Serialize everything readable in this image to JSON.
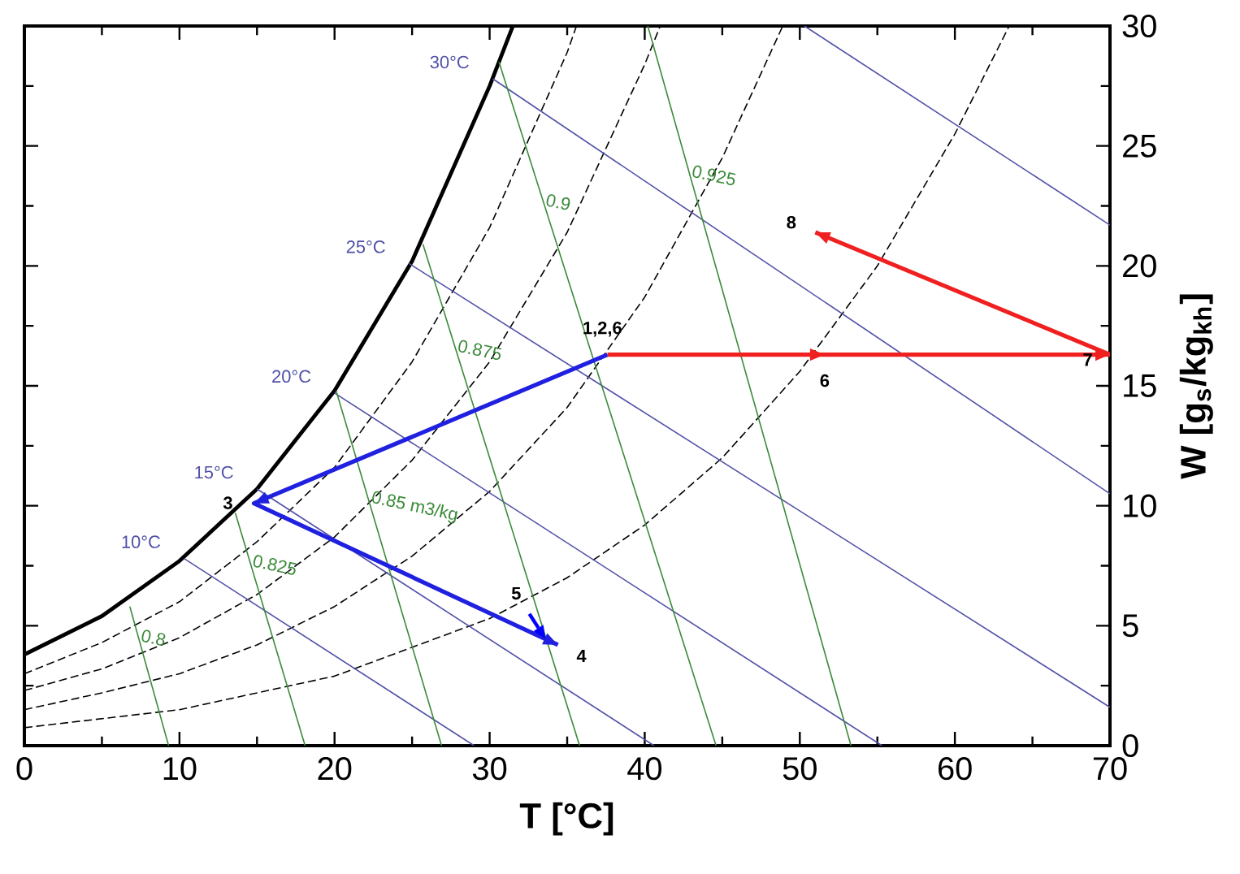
{
  "chart_data": {
    "type": "line",
    "xlabel": "T [°C]",
    "ylabel": "W [g$_{s}$/kg$_{kh}$]",
    "xlim": [
      0,
      70
    ],
    "ylim": [
      0,
      30
    ],
    "xticks": [
      0,
      10,
      20,
      30,
      40,
      50,
      60,
      70
    ],
    "yticks": [
      0,
      5,
      10,
      15,
      20,
      25,
      30
    ],
    "series": [
      {
        "color": "#000000",
        "x": [
          0,
          5,
          10,
          15,
          20,
          25,
          30,
          31.5
        ],
        "values": [
          3.8,
          5.4,
          7.7,
          10.7,
          14.8,
          20.2,
          27.5,
          30
        ]
      },
      {
        "color": "#000000",
        "line_style": "dashed",
        "x": [
          0,
          5,
          10,
          15,
          20,
          25,
          30,
          35,
          35.6
        ],
        "values": [
          3.0,
          4.3,
          6.0,
          8.5,
          11.6,
          16.0,
          21.6,
          28.9,
          30
        ]
      },
      {
        "color": "#000000",
        "line_style": "dashed",
        "x": [
          0,
          5,
          10,
          15,
          20,
          25,
          30,
          35,
          40,
          41
        ],
        "values": [
          2.3,
          3.2,
          4.5,
          6.3,
          8.7,
          11.9,
          16.0,
          21.4,
          28.4,
          30
        ]
      },
      {
        "color": "#000000",
        "line_style": "dashed",
        "x": [
          0,
          5,
          10,
          15,
          20,
          25,
          30,
          35,
          40,
          45,
          48.9
        ],
        "values": [
          1.5,
          2.2,
          3.0,
          4.2,
          5.8,
          7.9,
          10.6,
          14.1,
          18.7,
          24.5,
          30
        ]
      },
      {
        "color": "#000000",
        "line_style": "dashed",
        "x": [
          0,
          10,
          20,
          30,
          35,
          40,
          45,
          50,
          55,
          60,
          63.5
        ],
        "values": [
          0.75,
          1.5,
          2.9,
          5.3,
          7.0,
          9.2,
          12.0,
          15.6,
          20.0,
          25.5,
          30
        ]
      },
      {
        "name": "10°C",
        "color": "#5050a8",
        "x": [
          10.3,
          29.0
        ],
        "values": [
          7.8,
          0
        ]
      },
      {
        "name": "15°C",
        "color": "#5050a8",
        "x": [
          15.0,
          40.6
        ],
        "values": [
          10.7,
          0
        ]
      },
      {
        "name": "20°C",
        "color": "#5050a8",
        "x": [
          20.0,
          55.3
        ],
        "values": [
          14.7,
          0
        ]
      },
      {
        "name": "25°C",
        "color": "#5050a8",
        "x": [
          24.8,
          70
        ],
        "values": [
          20.1,
          1.6
        ]
      },
      {
        "name": "30°C",
        "color": "#5050a8",
        "x": [
          30.2,
          70
        ],
        "values": [
          27.8,
          10.5
        ]
      },
      {
        "color": "#5050a8",
        "x": [
          50.3,
          70
        ],
        "values": [
          30,
          21.7
        ]
      },
      {
        "name": "0.8",
        "color": "#3a8a3a",
        "x": [
          6.8,
          9.3
        ],
        "values": [
          5.8,
          0
        ]
      },
      {
        "name": "0.825",
        "color": "#3a8a3a",
        "x": [
          13.6,
          18.1
        ],
        "values": [
          9.7,
          0
        ]
      },
      {
        "name": "0.85 m3/kg",
        "color": "#3a8a3a",
        "x": [
          20.1,
          26.9
        ],
        "values": [
          14.8,
          0
        ]
      },
      {
        "name": "0.875",
        "color": "#3a8a3a",
        "x": [
          25.7,
          35.8
        ],
        "values": [
          20.9,
          0
        ]
      },
      {
        "name": "0.9",
        "color": "#3a8a3a",
        "x": [
          30.6,
          44.6
        ],
        "values": [
          28.5,
          0
        ]
      },
      {
        "name": "0.925",
        "color": "#3a8a3a",
        "x": [
          40.2,
          53.3
        ],
        "values": [
          30,
          0
        ]
      },
      {
        "color": "#2020e0",
        "x": [
          37.6,
          14.8,
          34.4
        ],
        "values": [
          16.3,
          10.1,
          4.2
        ]
      },
      {
        "color": "#f02020",
        "x": [
          37.6,
          51.6,
          70,
          51.0
        ],
        "values": [
          16.3,
          16.3,
          16.3,
          21.4
        ]
      }
    ],
    "annotations": [
      {
        "text": "1,2,6",
        "x": 37.6,
        "y": 16.3
      },
      {
        "text": "3",
        "x": 14.8,
        "y": 10.1
      },
      {
        "text": "4",
        "x": 34.4,
        "y": 4.2
      },
      {
        "text": "5",
        "x": 33.6,
        "y": 4.45
      },
      {
        "text": "6",
        "x": 51.6,
        "y": 16.3
      },
      {
        "text": "7",
        "x": 70,
        "y": 16.3
      },
      {
        "text": "8",
        "x": 51.0,
        "y": 21.4
      }
    ]
  }
}
